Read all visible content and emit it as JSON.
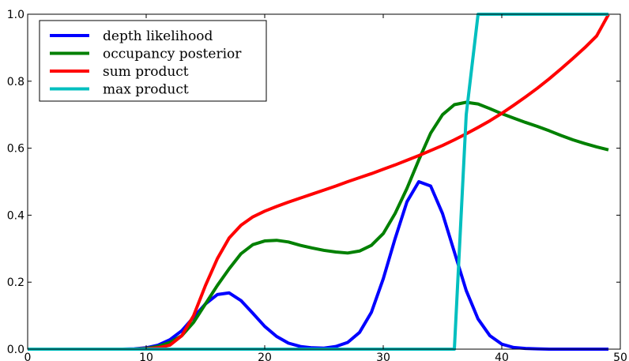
{
  "chart_data": {
    "type": "line",
    "title": "",
    "xlabel": "",
    "ylabel": "",
    "xlim": [
      0,
      50
    ],
    "ylim": [
      0,
      1.0
    ],
    "xticks": [
      "0",
      "10",
      "20",
      "30",
      "40",
      "50"
    ],
    "yticks": [
      "0.0",
      "0.2",
      "0.4",
      "0.6",
      "0.8",
      "1.0"
    ],
    "grid": false,
    "legend_position": "top-left",
    "x": [
      0,
      1,
      2,
      3,
      4,
      5,
      6,
      7,
      8,
      9,
      10,
      11,
      12,
      13,
      14,
      15,
      16,
      17,
      18,
      19,
      20,
      21,
      22,
      23,
      24,
      25,
      26,
      27,
      28,
      29,
      30,
      31,
      32,
      33,
      34,
      35,
      36,
      37,
      38,
      39,
      40,
      41,
      42,
      43,
      44,
      45,
      46,
      47,
      48,
      49
    ],
    "series": [
      {
        "name": "depth likelihood",
        "color": "#0000ff",
        "values": [
          0,
          0,
          0,
          0,
          0,
          0,
          0,
          0,
          0,
          0.001,
          0.004,
          0.012,
          0.028,
          0.055,
          0.095,
          0.135,
          0.163,
          0.168,
          0.145,
          0.107,
          0.068,
          0.038,
          0.018,
          0.008,
          0.004,
          0.003,
          0.008,
          0.02,
          0.05,
          0.11,
          0.21,
          0.33,
          0.44,
          0.5,
          0.487,
          0.405,
          0.29,
          0.175,
          0.09,
          0.04,
          0.015,
          0.005,
          0.002,
          0.001,
          0,
          0,
          0,
          0,
          0,
          0
        ]
      },
      {
        "name": "occupancy posterior",
        "color": "#008000",
        "values": [
          0,
          0,
          0,
          0,
          0,
          0,
          0,
          0,
          0,
          0,
          0.002,
          0.008,
          0.02,
          0.04,
          0.08,
          0.135,
          0.19,
          0.24,
          0.285,
          0.312,
          0.323,
          0.325,
          0.32,
          0.31,
          0.302,
          0.295,
          0.29,
          0.287,
          0.293,
          0.31,
          0.345,
          0.405,
          0.48,
          0.565,
          0.645,
          0.7,
          0.73,
          0.737,
          0.732,
          0.718,
          0.703,
          0.69,
          0.677,
          0.665,
          0.652,
          0.638,
          0.625,
          0.614,
          0.604,
          0.595
        ]
      },
      {
        "name": "sum product",
        "color": "#ff0000",
        "values": [
          0,
          0,
          0,
          0,
          0,
          0,
          0,
          0,
          0,
          0,
          0.001,
          0.004,
          0.012,
          0.04,
          0.1,
          0.19,
          0.27,
          0.332,
          0.37,
          0.395,
          0.412,
          0.426,
          0.439,
          0.451,
          0.463,
          0.475,
          0.487,
          0.5,
          0.512,
          0.524,
          0.537,
          0.55,
          0.564,
          0.578,
          0.593,
          0.608,
          0.625,
          0.643,
          0.662,
          0.682,
          0.704,
          0.728,
          0.753,
          0.779,
          0.807,
          0.837,
          0.868,
          0.9,
          0.935,
          0.999
        ]
      },
      {
        "name": "max product",
        "color": "#00bfbf",
        "values": [
          0,
          0,
          0,
          0,
          0,
          0,
          0,
          0,
          0,
          0,
          0,
          0,
          0,
          0,
          0,
          0,
          0,
          0,
          0,
          0,
          0,
          0,
          0,
          0,
          0,
          0,
          0,
          0,
          0,
          0,
          0,
          0,
          0,
          0,
          0,
          0,
          0,
          0.7,
          1.0,
          1.0,
          1.0,
          1.0,
          1.0,
          1.0,
          1.0,
          1.0,
          1.0,
          1.0,
          1.0,
          1.0
        ]
      }
    ]
  }
}
